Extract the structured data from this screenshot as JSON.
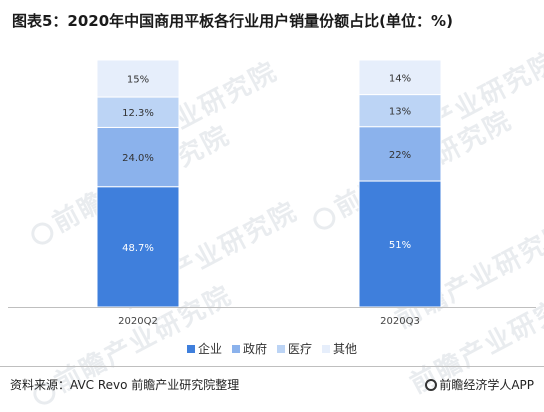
{
  "title": "图表5：2020年中国商用平板各行业用户销量份额占比(单位：%)",
  "watermark_text": "前瞻产业研究院",
  "chart_data": {
    "type": "bar",
    "stacked": true,
    "categories": [
      "2020Q2",
      "2020Q3"
    ],
    "series": [
      {
        "name": "企业",
        "color": "#3f7fdc",
        "values": [
          48.7,
          51
        ],
        "labels": [
          "48.7%",
          "51%"
        ]
      },
      {
        "name": "政府",
        "color": "#8bb2ec",
        "values": [
          24.0,
          22
        ],
        "labels": [
          "24.0%",
          "22%"
        ]
      },
      {
        "name": "医疗",
        "color": "#bcd4f5",
        "values": [
          12.3,
          13
        ],
        "labels": [
          "12.3%",
          "13%"
        ]
      },
      {
        "name": "其他",
        "color": "#e6eefb",
        "values": [
          15,
          14
        ],
        "labels": [
          "15%",
          "14%"
        ]
      }
    ],
    "ylim": [
      0,
      100
    ],
    "grid": false,
    "legend_position": "bottom"
  },
  "footer": {
    "source": "资料来源：AVC Revo 前瞻产业研究院整理",
    "brand": "前瞻经济学人APP"
  }
}
